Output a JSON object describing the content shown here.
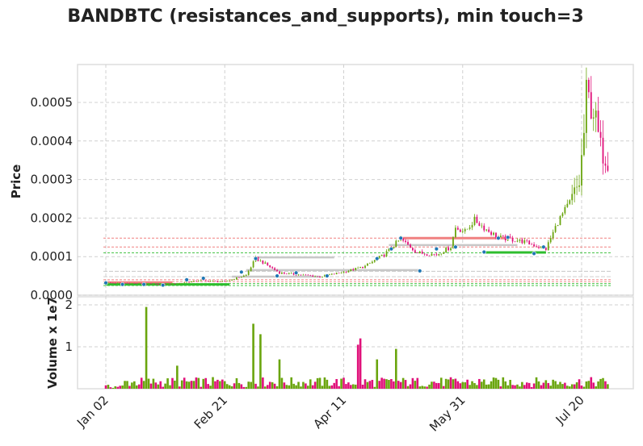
{
  "chart_data": {
    "type": "candlestick",
    "title": "BANDBTC (resistances_and_supports), min touch=3",
    "price_axis": {
      "label": "Price",
      "ylim": [
        0.0,
        0.0006
      ],
      "ticks": [
        0.0,
        0.0001,
        0.0002,
        0.0003,
        0.0004,
        0.0005
      ],
      "tick_labels": [
        "0.0000",
        "0.0001",
        "0.0002",
        "0.0003",
        "0.0004",
        "0.0005"
      ]
    },
    "volume_axis": {
      "label": "Volume x 1e7",
      "ylim": [
        0,
        2.0
      ],
      "ticks": [
        1,
        2
      ],
      "tick_labels": [
        "1",
        "2"
      ]
    },
    "x_axis": {
      "start_date": "2020-01-02",
      "end_date": "2020-07-31",
      "ticks": [
        "2020-01-02",
        "2020-02-21",
        "2020-04-11",
        "2020-05-31",
        "2020-07-20"
      ],
      "tick_labels": [
        "Jan 02",
        "Feb 21",
        "Apr 11",
        "May 31",
        "Jul 20"
      ]
    },
    "grid": true,
    "colors": {
      "up": "#6aa50e",
      "down": "#e0107a",
      "resistance": "#f08080",
      "support": "#2ebd2e",
      "zone": "#c8c8c8",
      "marker": "#1f77b4"
    },
    "price_anchors": [
      [
        "2020-01-02",
        3.2e-05
      ],
      [
        "2020-01-15",
        3e-05
      ],
      [
        "2020-01-25",
        2.8e-05
      ],
      [
        "2020-02-01",
        3e-05
      ],
      [
        "2020-02-10",
        3.8e-05
      ],
      [
        "2020-02-21",
        3.5e-05
      ],
      [
        "2020-03-01",
        5.2e-05
      ],
      [
        "2020-03-05",
        9.5e-05
      ],
      [
        "2020-03-08",
        8.5e-05
      ],
      [
        "2020-03-15",
        5.8e-05
      ],
      [
        "2020-03-25",
        5.2e-05
      ],
      [
        "2020-04-01",
        4.8e-05
      ],
      [
        "2020-04-11",
        6e-05
      ],
      [
        "2020-04-20",
        7.5e-05
      ],
      [
        "2020-04-28",
        0.000105
      ],
      [
        "2020-05-03",
        0.000135
      ],
      [
        "2020-05-05",
        0.000145
      ],
      [
        "2020-05-12",
        0.00011
      ],
      [
        "2020-05-20",
        0.000105
      ],
      [
        "2020-05-26",
        0.000125
      ],
      [
        "2020-05-28",
        0.000175
      ],
      [
        "2020-06-01",
        0.000165
      ],
      [
        "2020-06-05",
        0.000195
      ],
      [
        "2020-06-10",
        0.00017
      ],
      [
        "2020-06-15",
        0.00015
      ],
      [
        "2020-06-25",
        0.00014
      ],
      [
        "2020-07-05",
        0.00012
      ],
      [
        "2020-07-10",
        0.00019
      ],
      [
        "2020-07-15",
        0.00024
      ],
      [
        "2020-07-19",
        0.00029
      ],
      [
        "2020-07-21",
        0.00042
      ],
      [
        "2020-07-22",
        0.00052
      ],
      [
        "2020-07-25",
        0.00048
      ],
      [
        "2020-07-28",
        0.00038
      ],
      [
        "2020-07-31",
        0.00035
      ]
    ],
    "level_lines": [
      {
        "kind": "resistance",
        "value": 0.000148
      },
      {
        "kind": "resistance",
        "value": 0.000125
      },
      {
        "kind": "support",
        "value": 0.00011
      },
      {
        "kind": "zone",
        "value": 6.2e-05
      },
      {
        "kind": "zone",
        "value": 4.8e-05
      },
      {
        "kind": "resistance",
        "value": 4e-05
      },
      {
        "kind": "resistance",
        "value": 3.5e-05
      },
      {
        "kind": "support",
        "value": 3e-05
      },
      {
        "kind": "support",
        "value": 2.5e-05
      }
    ],
    "segments": [
      {
        "kind": "resistance",
        "from": "2020-01-02",
        "to": "2020-01-30",
        "value": 3.3e-05
      },
      {
        "kind": "support",
        "from": "2020-01-02",
        "to": "2020-02-23",
        "value": 2.8e-05
      },
      {
        "kind": "zone",
        "from": "2020-03-05",
        "to": "2020-04-07",
        "value": 9.8e-05
      },
      {
        "kind": "zone",
        "from": "2020-03-01",
        "to": "2020-05-13",
        "value": 6.5e-05
      },
      {
        "kind": "zone",
        "from": "2020-02-24",
        "to": "2020-04-01",
        "value": 4.8e-05
      },
      {
        "kind": "zone",
        "from": "2020-04-30",
        "to": "2020-06-23",
        "value": 0.00013
      },
      {
        "kind": "resistance",
        "from": "2020-05-05",
        "to": "2020-06-19",
        "value": 0.000148
      },
      {
        "kind": "support",
        "from": "2020-06-09",
        "to": "2020-07-05",
        "value": 0.000111
      }
    ],
    "touch_points": [
      [
        "2020-01-02",
        3.2e-05
      ],
      [
        "2020-01-09",
        2.8e-05
      ],
      [
        "2020-01-18",
        2.8e-05
      ],
      [
        "2020-01-26",
        2.6e-05
      ],
      [
        "2020-02-05",
        4e-05
      ],
      [
        "2020-02-12",
        4.4e-05
      ],
      [
        "2020-02-28",
        6e-05
      ],
      [
        "2020-03-05",
        9.5e-05
      ],
      [
        "2020-03-14",
        5e-05
      ],
      [
        "2020-03-22",
        5.8e-05
      ],
      [
        "2020-04-04",
        5e-05
      ],
      [
        "2020-04-25",
        9.5e-05
      ],
      [
        "2020-05-01",
        0.00012
      ],
      [
        "2020-05-05",
        0.000148
      ],
      [
        "2020-05-13",
        6.3e-05
      ],
      [
        "2020-05-20",
        0.00012
      ],
      [
        "2020-05-28",
        0.000125
      ],
      [
        "2020-06-09",
        0.000112
      ],
      [
        "2020-06-15",
        0.000148
      ],
      [
        "2020-06-19",
        0.00015
      ],
      [
        "2020-06-30",
        0.000108
      ],
      [
        "2020-07-04",
        0.000125
      ]
    ],
    "volume_spikes": [
      [
        "2020-01-19",
        1.95
      ],
      [
        "2020-03-04",
        1.55
      ],
      [
        "2020-03-07",
        1.3
      ],
      [
        "2020-04-18",
        1.2
      ],
      [
        "2020-04-17",
        1.05
      ],
      [
        "2020-05-03",
        0.95
      ],
      [
        "2020-04-25",
        0.7
      ],
      [
        "2020-03-15",
        0.7
      ],
      [
        "2020-02-01",
        0.55
      ]
    ],
    "volume_base": 0.15
  }
}
